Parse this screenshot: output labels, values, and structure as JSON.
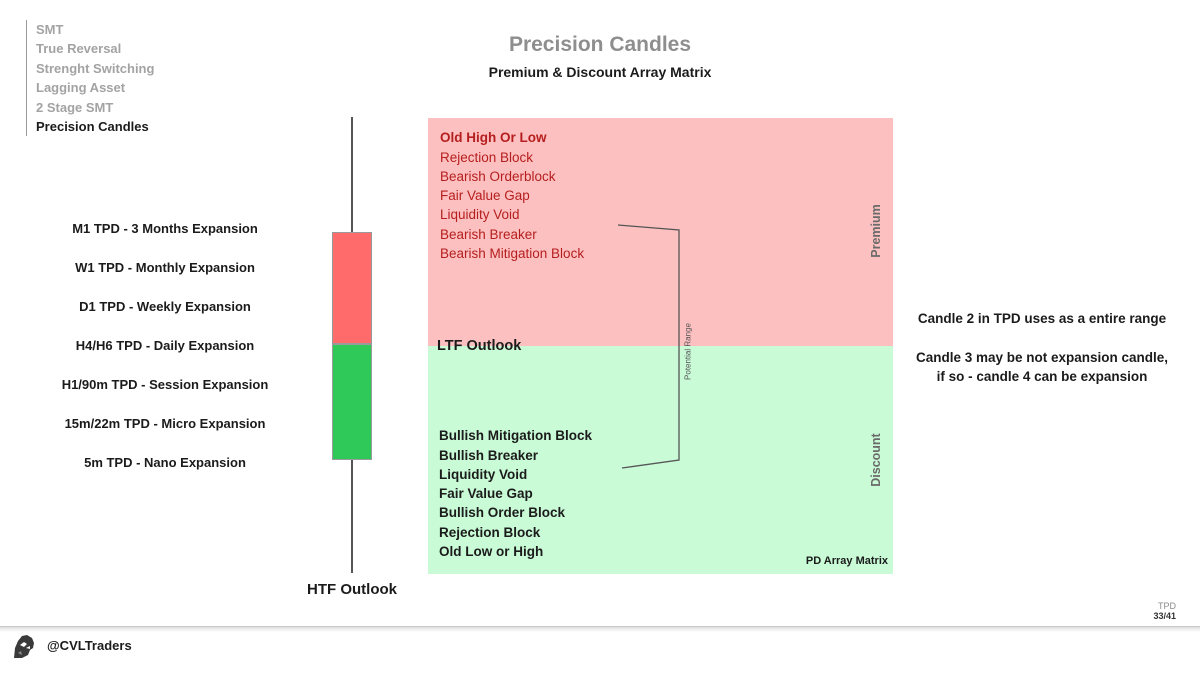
{
  "nav": {
    "items": [
      "SMT",
      "True Reversal",
      "Strenght Switching",
      "Lagging Asset",
      "2 Stage SMT",
      "Precision Candles"
    ],
    "active_index": 5
  },
  "title": "Precision Candles",
  "subtitle": "Premium & Discount Array Matrix",
  "timeframes": [
    "M1 TPD - 3 Months Expansion",
    "W1 TPD - Monthly Expansion",
    "D1 TPD - Weekly Expansion",
    "H4/H6 TPD - Daily Expansion",
    "H1/90m TPD - Session Expansion",
    "15m/22m TPD - Micro Expansion",
    "5m TPD - Nano Expansion"
  ],
  "htf_label": "HTF Outlook",
  "ltf_label": "LTF Outlook",
  "premium": {
    "label": "Premium",
    "items": [
      "Old High Or Low",
      "Rejection Block",
      "Bearish Orderblock",
      "Fair Value Gap",
      "Liquidity Void",
      "Bearish Breaker",
      "Bearish Mitigation Block"
    ]
  },
  "discount": {
    "label": "Discount",
    "items": [
      "Bullish Mitigation Block",
      "Bullish Breaker",
      "Liquidity Void",
      "Fair Value Gap",
      "Bullish Order Block",
      "Rejection Block",
      "Old Low or High"
    ]
  },
  "potential_range": "Potential Range",
  "pd_matrix_label": "PD Array Matrix",
  "notes": {
    "note1": "Candle 2 in TPD uses as a entire range",
    "note2_line1": "Candle 3 may be not expansion candle,",
    "note2_line2": "if so - candle 4 can be expansion"
  },
  "page": {
    "tag": "TPD",
    "number": "33/41"
  },
  "footer": {
    "handle": "@CVLTraders"
  },
  "colors": {
    "premium_zone": "#fdc0c0",
    "discount_zone": "#c9fbd7",
    "bearish_text": "#b51e1e",
    "candle_red": "#ff6b6b",
    "candle_green": "#2fc95a"
  }
}
